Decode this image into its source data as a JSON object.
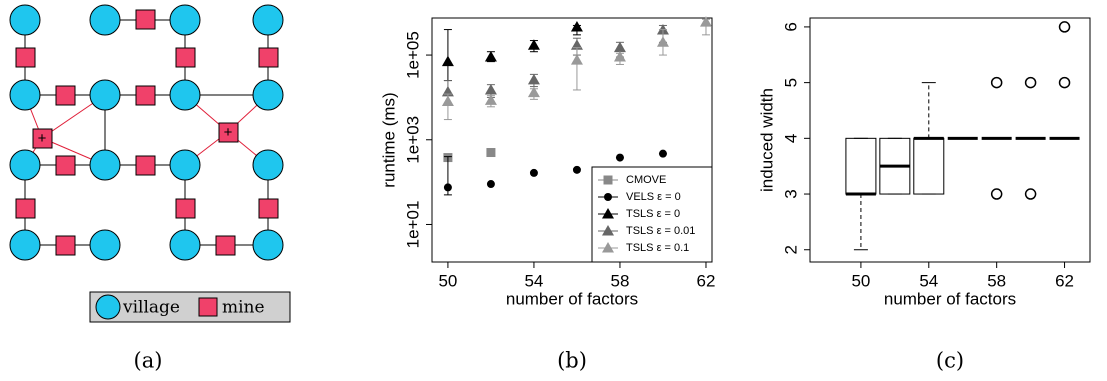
{
  "diagram": {
    "plus_labels": [
      "+",
      "+"
    ],
    "legend": [
      "village",
      "mine"
    ],
    "caption": "(a)"
  },
  "chart_data": [
    {
      "type": "scatter",
      "caption": "(b)",
      "xlabel": "number of factors",
      "ylabel": "runtime (ms)",
      "xlim": [
        49.26,
        62.28
      ],
      "xticks": [
        50,
        54,
        58,
        62
      ],
      "ylog": true,
      "ylim": [
        1.3,
        750000
      ],
      "yticks": [
        {
          "value": 10,
          "label": "1e+01"
        },
        {
          "value": 1000,
          "label": "1e+03"
        },
        {
          "value": 100000,
          "label": "1e+05"
        }
      ],
      "legend": "bottom-right",
      "x": [
        50,
        52,
        54,
        56,
        58,
        60,
        62
      ],
      "series": [
        {
          "name": "CMOVE",
          "color": "#888888",
          "marker": "square",
          "values": [
            380,
            500,
            null,
            null,
            null,
            null,
            null
          ],
          "lower": [
            null,
            null,
            null,
            null,
            null,
            null,
            null
          ],
          "upper": [
            null,
            null,
            null,
            null,
            null,
            null,
            null
          ]
        },
        {
          "name": "VELS ε = 0",
          "color": "#000000",
          "marker": "circle",
          "values": [
            75,
            90,
            165,
            195,
            380,
            470,
            null
          ],
          "lower": [
            50,
            null,
            null,
            null,
            null,
            null,
            null
          ],
          "upper": [
            400,
            null,
            null,
            null,
            null,
            null,
            null
          ]
        },
        {
          "name": "TSLS ε = 0",
          "color": "#000000",
          "marker": "triangle",
          "values": [
            70000,
            90000,
            170000,
            460000,
            null,
            null,
            null
          ],
          "lower": [
            25000,
            70000,
            120000,
            300000,
            null,
            null,
            null
          ],
          "upper": [
            400000,
            120000,
            220000,
            500000,
            null,
            null,
            null
          ]
        },
        {
          "name": "TSLS ε = 0.01",
          "color": "#666666",
          "marker": "triangle",
          "values": [
            13500,
            15000,
            26000,
            170000,
            150000,
            390000,
            null
          ],
          "lower": [
            7000,
            10000,
            18000,
            100000,
            90000,
            200000,
            null
          ],
          "upper": [
            25000,
            20000,
            35000,
            250000,
            200000,
            500000,
            null
          ]
        },
        {
          "name": "TSLS ε = 0.1",
          "color": "#999999",
          "marker": "triangle",
          "values": [
            8000,
            8500,
            13000,
            76000,
            90000,
            200000,
            600000
          ],
          "lower": [
            3000,
            6000,
            9000,
            15000,
            60000,
            100000,
            300000
          ],
          "upper": [
            12000,
            11000,
            16000,
            150000,
            110000,
            400000,
            700000
          ]
        }
      ]
    },
    {
      "type": "box",
      "caption": "(c)",
      "xlabel": "number of factors",
      "ylabel": "induced width",
      "xlim": [
        47,
        63.5
      ],
      "xticks": [
        50,
        54,
        58,
        62
      ],
      "ylim": [
        1.78,
        6.16
      ],
      "yticks": [
        2,
        3,
        4,
        5,
        6
      ],
      "boxes": [
        {
          "x": 50,
          "low": 2,
          "q1": 3,
          "median": 3,
          "q3": 4,
          "high": 4
        },
        {
          "x": 52,
          "low": 3,
          "q1": 3,
          "median": 3.5,
          "q3": 4,
          "high": 4
        },
        {
          "x": 54,
          "low": 3,
          "q1": 3,
          "median": 4,
          "q3": 4,
          "high": 5
        },
        {
          "x": 56,
          "low": 4,
          "q1": 4,
          "median": 4,
          "q3": 4,
          "high": 4
        },
        {
          "x": 58,
          "low": 4,
          "q1": 4,
          "median": 4,
          "q3": 4,
          "high": 4,
          "outliers": [
            3,
            5
          ]
        },
        {
          "x": 60,
          "low": 4,
          "q1": 4,
          "median": 4,
          "q3": 4,
          "high": 4,
          "outliers": [
            3,
            5
          ]
        },
        {
          "x": 62,
          "low": 4,
          "q1": 4,
          "median": 4,
          "q3": 4,
          "high": 4,
          "outliers": [
            5,
            6
          ]
        }
      ]
    }
  ]
}
